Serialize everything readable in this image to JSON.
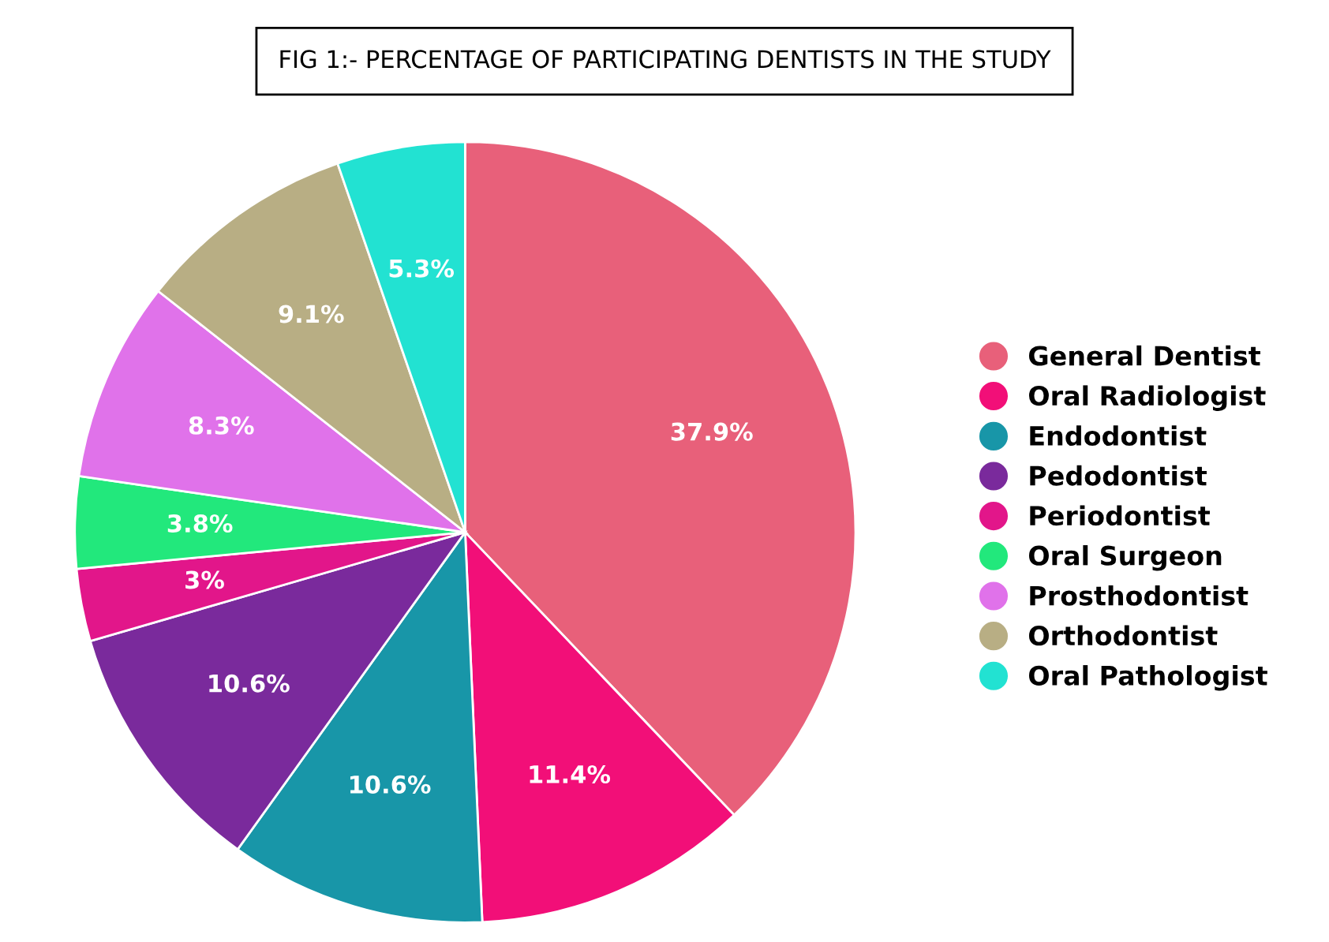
{
  "chart_data": {
    "type": "pie",
    "title": "FIG 1:- PERCENTAGE OF PARTICIPATING DENTISTS IN THE STUDY",
    "categories": [
      "General Dentist",
      "Oral Radiologist",
      "Endodontist",
      "Pedodontist",
      "Periodontist",
      "Oral Surgeon",
      "Prosthodontist",
      "Orthodontist",
      "Oral Pathologist"
    ],
    "values": [
      37.9,
      11.4,
      10.6,
      10.6,
      3,
      3.8,
      8.3,
      9.1,
      5.3
    ],
    "value_labels": [
      "37.9%",
      "11.4%",
      "10.6%",
      "10.6%",
      "3%",
      "3.8%",
      "8.3%",
      "9.1%",
      "5.3%"
    ],
    "colors": [
      "#e8607a",
      "#f20f78",
      "#1896a8",
      "#7a2a9c",
      "#e2168a",
      "#22e87c",
      "#e072ea",
      "#b8ae84",
      "#22e2d2"
    ],
    "legend": "right"
  }
}
